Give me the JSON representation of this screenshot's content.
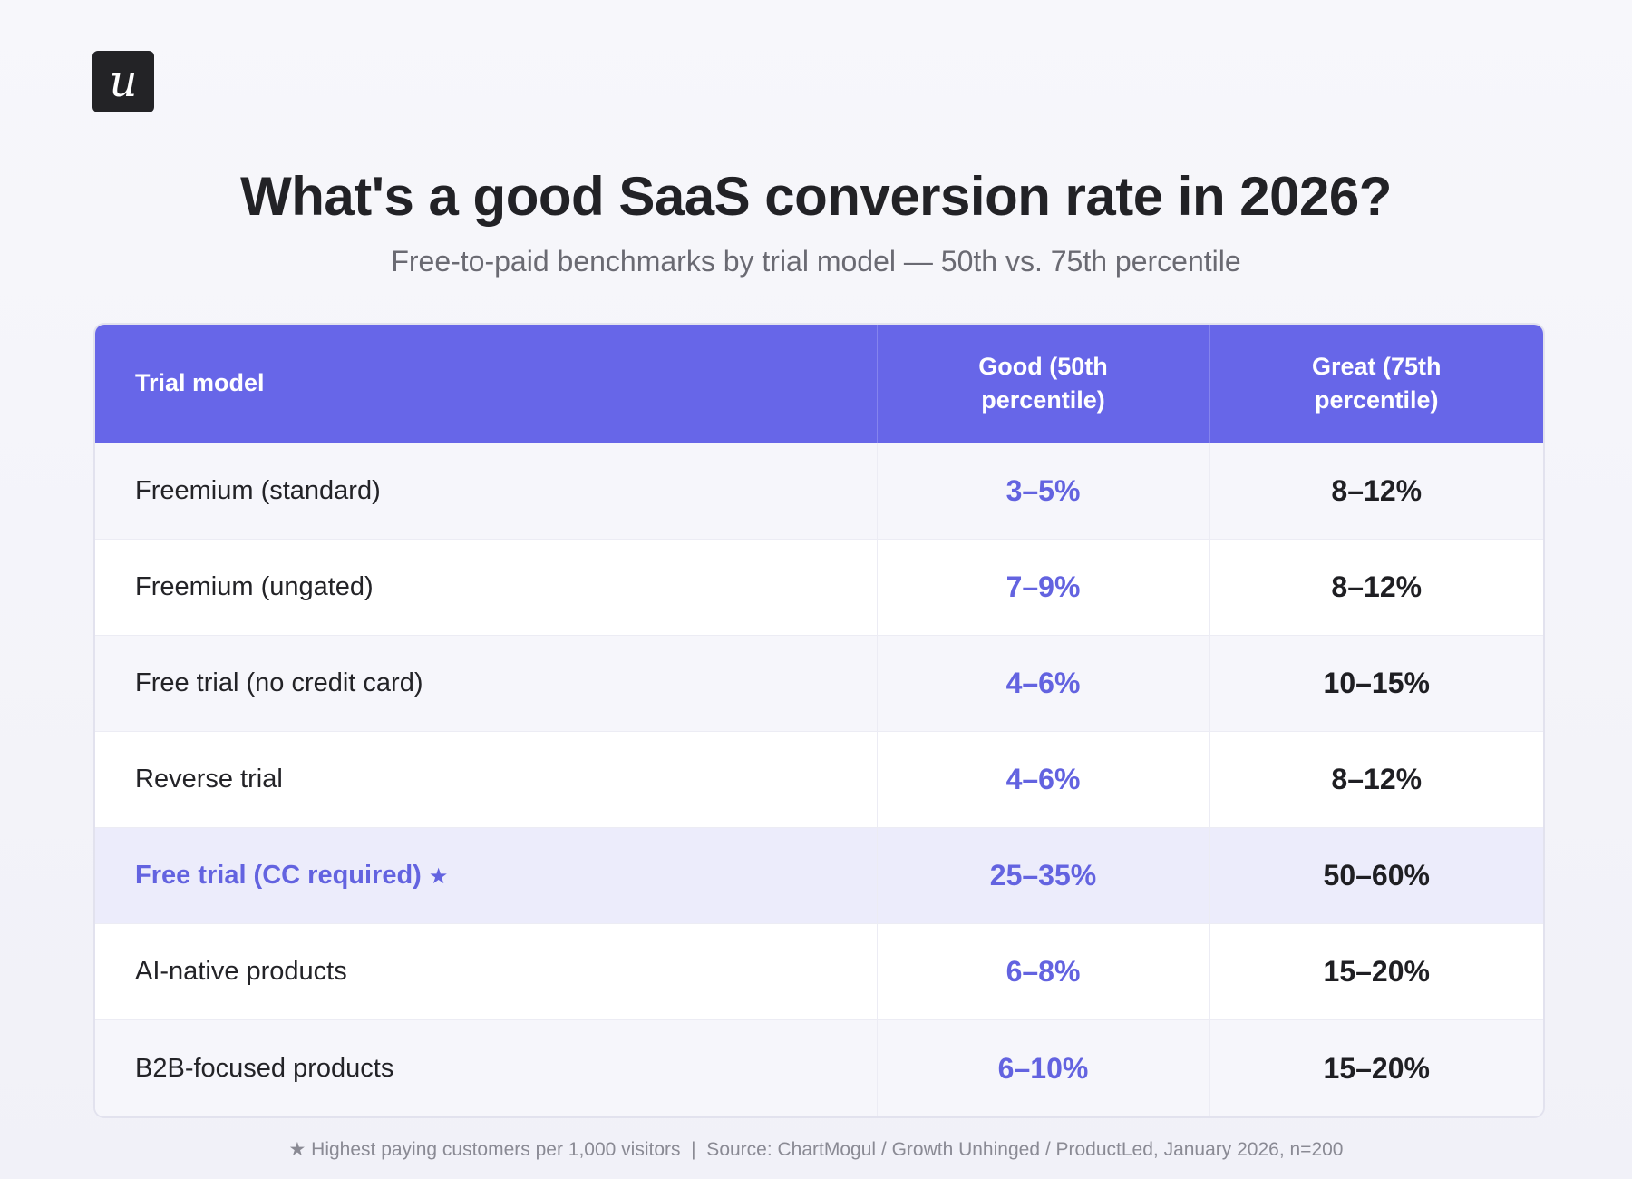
{
  "logo": {
    "glyph": "u"
  },
  "header": {
    "title": "What's a good SaaS conversion rate in 2026?",
    "subtitle": "Free-to-paid benchmarks by trial model — 50th vs. 75th percentile"
  },
  "table": {
    "columns": [
      "Trial model",
      "Good (50th percentile)",
      "Great (75th percentile)"
    ],
    "rows": [
      {
        "model": "Freemium (standard)",
        "good": "3–5%",
        "great": "8–12%",
        "marker": ""
      },
      {
        "model": "Freemium (ungated)",
        "good": "7–9%",
        "great": "8–12%",
        "marker": ""
      },
      {
        "model": "Free trial (no credit card)",
        "good": "4–6%",
        "great": "10–15%",
        "marker": ""
      },
      {
        "model": "Reverse trial",
        "good": "4–6%",
        "great": "8–12%",
        "marker": ""
      },
      {
        "model": "Free trial (CC required)",
        "good": "25–35%",
        "great": "50–60%",
        "marker": "★"
      },
      {
        "model": "AI-native products",
        "good": "6–8%",
        "great": "15–20%",
        "marker": ""
      },
      {
        "model": "B2B-focused products",
        "good": "6–10%",
        "great": "15–20%",
        "marker": ""
      }
    ],
    "highlight_index": 4
  },
  "chart_data": {
    "type": "table",
    "title": "What's a good SaaS conversion rate in 2026?",
    "subtitle": "Free-to-paid benchmarks by trial model — 50th vs. 75th percentile",
    "categories": [
      "Freemium (standard)",
      "Freemium (ungated)",
      "Free trial (no credit card)",
      "Reverse trial",
      "Free trial (CC required)",
      "AI-native products",
      "B2B-focused products"
    ],
    "series": [
      {
        "name": "Good (50th percentile)",
        "values": [
          "3–5%",
          "7–9%",
          "4–6%",
          "4–6%",
          "25–35%",
          "6–8%",
          "6–10%"
        ]
      },
      {
        "name": "Great (75th percentile)",
        "values": [
          "8–12%",
          "8–12%",
          "10–15%",
          "8–12%",
          "50–60%",
          "15–20%",
          "15–20%"
        ]
      }
    ]
  },
  "footnote": "★ Highest paying customers per 1,000 visitors  |  Source: ChartMogul / Growth Unhinged / ProductLed, January 2026, n=200",
  "colors": {
    "accent": "#6766e8",
    "good_text": "#6363e0",
    "highlight_row": "#ececfb",
    "logo_bg": "#232326"
  }
}
